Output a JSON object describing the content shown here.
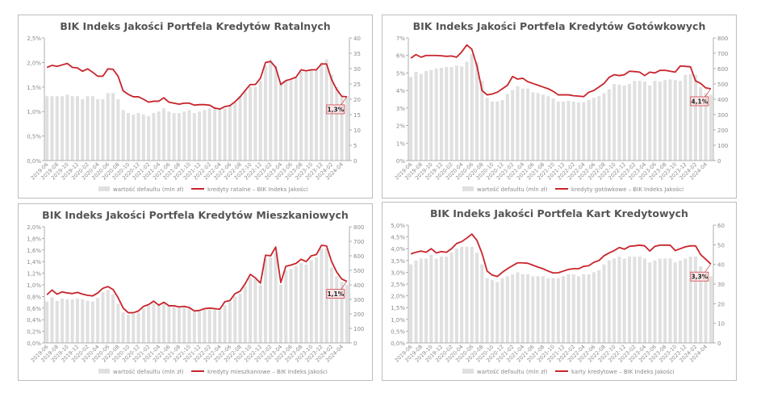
{
  "colors": {
    "bars": "#e0e0e0",
    "line": "#c8252c",
    "axis_text": "#8a8a8a",
    "title": "#555555"
  },
  "chart_data": [
    {
      "type": "bar+line",
      "title": "BIK Indeks Jakości Portfela Kredytów Ratalnych",
      "categories": [
        "2019-06",
        "2019-07",
        "2019-08",
        "2019-09",
        "2019-10",
        "2019-11",
        "2019-12",
        "2020-01",
        "2020-02",
        "2020-03",
        "2020-04",
        "2020-05",
        "2020-06",
        "2020-07",
        "2020-08",
        "2020-09",
        "2020-10",
        "2020-11",
        "2020-12",
        "2021-01",
        "2021-02",
        "2021-03",
        "2021-04",
        "2021-05",
        "2021-06",
        "2021-07",
        "2021-08",
        "2021-09",
        "2021-10",
        "2021-11",
        "2021-12",
        "2022-01",
        "2022-02",
        "2022-03",
        "2022-04",
        "2022-05",
        "2022-06",
        "2022-07",
        "2022-08",
        "2022-09",
        "2022-10",
        "2022-11",
        "2022-12",
        "2023-01",
        "2023-02",
        "2023-03",
        "2023-04",
        "2023-05",
        "2023-06",
        "2023-07",
        "2023-08",
        "2023-09",
        "2023-10",
        "2023-11",
        "2023-12",
        "2024-01",
        "2024-02",
        "2024-03",
        "2024-04",
        "2024-05"
      ],
      "xtick_labels": [
        "2019-06",
        "2019-08",
        "2019-10",
        "2019-12",
        "2020-02",
        "2020-04",
        "2020-06",
        "2020-08",
        "2020-10",
        "2020-12",
        "2021-02",
        "2021-04",
        "2021-06",
        "2021-08",
        "2021-10",
        "2021-12",
        "2022-02",
        "2022-04",
        "2022-06",
        "2022-08",
        "2022-10",
        "2022-12",
        "2023-02",
        "2023-04",
        "2023-06",
        "2023-08",
        "2023-10",
        "2023-12",
        "2024-02",
        "2024-04"
      ],
      "yleft": {
        "lim": [
          0,
          2.5
        ],
        "ticks": [
          "0,0%",
          "0,5%",
          "1,0%",
          "1,5%",
          "2,0%",
          "2,5%"
        ]
      },
      "yright": {
        "lim": [
          0,
          40
        ],
        "ticks": [
          "0",
          "5",
          "10",
          "15",
          "20",
          "25",
          "30",
          "35",
          "40"
        ]
      },
      "bars": {
        "name": "wartość defaultu (mln zł)",
        "axis": "right",
        "values": [
          21,
          21,
          21,
          21,
          21.5,
          21,
          21,
          20,
          21,
          21,
          20,
          20,
          22,
          22,
          20,
          16.5,
          15.5,
          15,
          15.5,
          15,
          14.5,
          15.5,
          16,
          17,
          16,
          15.5,
          15.5,
          16,
          16.5,
          15.5,
          16,
          16.5,
          17,
          17,
          17,
          17,
          18,
          19,
          21,
          23,
          24,
          24,
          26,
          31,
          33,
          31,
          25,
          26,
          26.5,
          27,
          29,
          29,
          29.5,
          29.5,
          32,
          33,
          28,
          24,
          21,
          21
        ]
      },
      "line": {
        "name": "kredyty ratalne – BIK Indeks Jakości",
        "axis": "left",
        "values": [
          1.9,
          1.94,
          1.92,
          1.95,
          1.98,
          1.9,
          1.89,
          1.82,
          1.87,
          1.8,
          1.72,
          1.72,
          1.87,
          1.86,
          1.72,
          1.42,
          1.35,
          1.3,
          1.3,
          1.25,
          1.19,
          1.21,
          1.21,
          1.28,
          1.19,
          1.17,
          1.15,
          1.17,
          1.17,
          1.13,
          1.14,
          1.14,
          1.13,
          1.07,
          1.05,
          1.1,
          1.12,
          1.2,
          1.3,
          1.43,
          1.55,
          1.55,
          1.68,
          2.0,
          2.02,
          1.9,
          1.55,
          1.63,
          1.66,
          1.7,
          1.85,
          1.83,
          1.85,
          1.85,
          1.97,
          1.97,
          1.65,
          1.45,
          1.31,
          1.3
        ]
      },
      "annotation": "1,3%"
    },
    {
      "type": "bar+line",
      "title": "BIK Indeks Jakości Portfela Kredytów Gotówkowych",
      "categories": [
        "2019-06",
        "2019-07",
        "2019-08",
        "2019-09",
        "2019-10",
        "2019-11",
        "2019-12",
        "2020-01",
        "2020-02",
        "2020-03",
        "2020-04",
        "2020-05",
        "2020-06",
        "2020-07",
        "2020-08",
        "2020-09",
        "2020-10",
        "2020-11",
        "2020-12",
        "2021-01",
        "2021-02",
        "2021-03",
        "2021-04",
        "2021-05",
        "2021-06",
        "2021-07",
        "2021-08",
        "2021-09",
        "2021-10",
        "2021-11",
        "2021-12",
        "2022-01",
        "2022-02",
        "2022-03",
        "2022-04",
        "2022-05",
        "2022-06",
        "2022-07",
        "2022-08",
        "2022-09",
        "2022-10",
        "2022-11",
        "2022-12",
        "2023-01",
        "2023-02",
        "2023-03",
        "2023-04",
        "2023-05",
        "2023-06",
        "2023-07",
        "2023-08",
        "2023-09",
        "2023-10",
        "2023-11",
        "2023-12",
        "2024-01",
        "2024-02",
        "2024-03",
        "2024-04",
        "2024-05"
      ],
      "xtick_labels": [
        "2019-06",
        "2019-08",
        "2019-10",
        "2019-12",
        "2020-02",
        "2020-04",
        "2020-06",
        "2020-08",
        "2020-10",
        "2020-12",
        "2021-02",
        "2021-04",
        "2021-06",
        "2021-08",
        "2021-10",
        "2021-12",
        "2022-02",
        "2022-04",
        "2022-06",
        "2022-08",
        "2022-10",
        "2022-12",
        "2023-02",
        "2023-04",
        "2023-06",
        "2023-08",
        "2023-10",
        "2023-12",
        "2024-02",
        "2024-04"
      ],
      "yleft": {
        "lim": [
          0,
          7
        ],
        "ticks": [
          "0%",
          "1%",
          "2%",
          "3%",
          "4%",
          "5%",
          "6%",
          "7%"
        ]
      },
      "yright": {
        "lim": [
          0,
          800
        ],
        "ticks": [
          "0",
          "100",
          "200",
          "300",
          "400",
          "500",
          "600",
          "700",
          "800"
        ]
      },
      "bars": {
        "name": "wartość defaultu (mln zł)",
        "axis": "right",
        "values": [
          545,
          580,
          565,
          585,
          590,
          600,
          605,
          610,
          610,
          620,
          615,
          645,
          695,
          640,
          520,
          410,
          385,
          385,
          395,
          435,
          460,
          485,
          470,
          470,
          445,
          440,
          430,
          420,
          405,
          385,
          385,
          390,
          385,
          380,
          380,
          395,
          410,
          420,
          440,
          465,
          500,
          495,
          490,
          500,
          520,
          520,
          515,
          490,
          520,
          515,
          525,
          530,
          525,
          520,
          560,
          565,
          560,
          480,
          440,
          430
        ]
      },
      "line": {
        "name": "kredyty gotówkowe – BIK Indeks Jakości",
        "axis": "left",
        "values": [
          5.85,
          6.05,
          5.9,
          6.0,
          6.0,
          6.0,
          5.98,
          5.95,
          5.97,
          5.9,
          6.2,
          6.6,
          6.35,
          5.4,
          4.0,
          3.75,
          3.8,
          3.9,
          4.1,
          4.3,
          4.8,
          4.65,
          4.7,
          4.5,
          4.4,
          4.3,
          4.2,
          4.1,
          3.95,
          3.75,
          3.75,
          3.75,
          3.7,
          3.68,
          3.65,
          3.9,
          4.0,
          4.2,
          4.4,
          4.75,
          4.9,
          4.85,
          4.9,
          5.1,
          5.08,
          5.05,
          4.85,
          5.05,
          5.0,
          5.15,
          5.15,
          5.1,
          5.05,
          5.4,
          5.38,
          5.35,
          4.55,
          4.4,
          4.15,
          4.1
        ]
      },
      "annotation": "4,1%"
    },
    {
      "type": "bar+line",
      "title": "BIK Indeks Jakości Portfela Kredytów Mieszkaniowych",
      "categories": [
        "2019-06",
        "2019-07",
        "2019-08",
        "2019-09",
        "2019-10",
        "2019-11",
        "2019-12",
        "2020-01",
        "2020-02",
        "2020-03",
        "2020-04",
        "2020-05",
        "2020-06",
        "2020-07",
        "2020-08",
        "2020-09",
        "2020-10",
        "2020-11",
        "2020-12",
        "2021-01",
        "2021-02",
        "2021-03",
        "2021-04",
        "2021-05",
        "2021-06",
        "2021-07",
        "2021-08",
        "2021-09",
        "2021-10",
        "2021-11",
        "2021-12",
        "2022-01",
        "2022-02",
        "2022-03",
        "2022-04",
        "2022-05",
        "2022-06",
        "2022-07",
        "2022-08",
        "2022-09",
        "2022-10",
        "2022-11",
        "2022-12",
        "2023-01",
        "2023-02",
        "2023-03",
        "2023-04",
        "2023-05",
        "2023-06",
        "2023-07",
        "2023-08",
        "2023-09",
        "2023-10",
        "2023-11",
        "2023-12",
        "2024-01",
        "2024-02",
        "2024-03",
        "2024-04",
        "2024-05"
      ],
      "xtick_labels": [
        "2019-06",
        "2019-08",
        "2019-10",
        "2019-12",
        "2020-02",
        "2020-04",
        "2020-06",
        "2020-08",
        "2020-10",
        "2020-12",
        "2021-02",
        "2021-04",
        "2021-06",
        "2021-08",
        "2021-10",
        "2021-12",
        "2022-02",
        "2022-04",
        "2022-06",
        "2022-08",
        "2022-10",
        "2022-12",
        "2023-02",
        "2023-04",
        "2023-06",
        "2023-08",
        "2023-10",
        "2023-12",
        "2024-02",
        "2024-04"
      ],
      "yleft": {
        "lim": [
          0,
          2.0
        ],
        "ticks": [
          "0,0%",
          "0,2%",
          "0,4%",
          "0,6%",
          "0,8%",
          "1,0%",
          "1,2%",
          "1,4%",
          "1,6%",
          "1,8%",
          "2,0%"
        ]
      },
      "yright": {
        "lim": [
          0,
          800
        ],
        "ticks": [
          "0",
          "100",
          "200",
          "300",
          "400",
          "500",
          "600",
          "700",
          "800"
        ]
      },
      "bars": {
        "name": "wartość defaultu (mln zł)",
        "axis": "right",
        "values": [
          285,
          315,
          290,
          305,
          300,
          300,
          305,
          300,
          290,
          285,
          310,
          350,
          365,
          335,
          270,
          210,
          195,
          200,
          210,
          240,
          255,
          275,
          260,
          275,
          255,
          250,
          250,
          250,
          245,
          215,
          220,
          230,
          230,
          230,
          225,
          260,
          280,
          320,
          340,
          390,
          450,
          440,
          400,
          580,
          590,
          620,
          400,
          500,
          510,
          530,
          550,
          540,
          570,
          590,
          650,
          650,
          520,
          460,
          420,
          400
        ]
      },
      "line": {
        "name": "kredyty mieszkaniowe – BIK Indeks Jakości",
        "axis": "left",
        "values": [
          0.83,
          0.91,
          0.84,
          0.88,
          0.86,
          0.85,
          0.87,
          0.84,
          0.82,
          0.81,
          0.86,
          0.94,
          0.97,
          0.92,
          0.78,
          0.6,
          0.52,
          0.52,
          0.55,
          0.63,
          0.66,
          0.72,
          0.65,
          0.7,
          0.64,
          0.64,
          0.62,
          0.63,
          0.61,
          0.55,
          0.56,
          0.59,
          0.6,
          0.59,
          0.58,
          0.71,
          0.73,
          0.85,
          0.89,
          1.02,
          1.18,
          1.12,
          1.03,
          1.51,
          1.5,
          1.65,
          1.04,
          1.32,
          1.34,
          1.37,
          1.44,
          1.4,
          1.5,
          1.52,
          1.68,
          1.67,
          1.4,
          1.22,
          1.1,
          1.06
        ]
      },
      "annotation": "1,1%"
    },
    {
      "type": "bar+line",
      "title": "BIK Indeks Jakości Portfela Kart Kredytowych",
      "categories": [
        "2019-06",
        "2019-07",
        "2019-08",
        "2019-09",
        "2019-10",
        "2019-11",
        "2019-12",
        "2020-01",
        "2020-02",
        "2020-03",
        "2020-04",
        "2020-05",
        "2020-06",
        "2020-07",
        "2020-08",
        "2020-09",
        "2020-10",
        "2020-11",
        "2020-12",
        "2021-01",
        "2021-02",
        "2021-03",
        "2021-04",
        "2021-05",
        "2021-06",
        "2021-07",
        "2021-08",
        "2021-09",
        "2021-10",
        "2021-11",
        "2021-12",
        "2022-01",
        "2022-02",
        "2022-03",
        "2022-04",
        "2022-05",
        "2022-06",
        "2022-07",
        "2022-08",
        "2022-09",
        "2022-10",
        "2022-11",
        "2022-12",
        "2023-01",
        "2023-02",
        "2023-03",
        "2023-04",
        "2023-05",
        "2023-06",
        "2023-07",
        "2023-08",
        "2023-09",
        "2023-10",
        "2023-11",
        "2023-12",
        "2024-01",
        "2024-02",
        "2024-03",
        "2024-04",
        "2024-05"
      ],
      "xtick_labels": [
        "2019-06",
        "2019-08",
        "2019-10",
        "2019-12",
        "2020-02",
        "2020-04",
        "2020-06",
        "2020-08",
        "2020-10",
        "2020-12",
        "2021-02",
        "2021-04",
        "2021-06",
        "2021-08",
        "2021-10",
        "2021-12",
        "2022-02",
        "2022-04",
        "2022-06",
        "2022-08",
        "2022-10",
        "2022-12",
        "2023-02",
        "2023-04",
        "2023-06",
        "2023-08",
        "2023-10",
        "2023-12",
        "2024-02",
        "2024-04"
      ],
      "yleft": {
        "lim": [
          0,
          5.0
        ],
        "ticks": [
          "0,0%",
          "0,5%",
          "1,0%",
          "1,5%",
          "2,0%",
          "2,5%",
          "3,0%",
          "3,5%",
          "4,0%",
          "4,5%",
          "5,0%"
        ]
      },
      "yright": {
        "lim": [
          0,
          60
        ],
        "ticks": [
          "0",
          "10",
          "20",
          "30",
          "40",
          "50",
          "60"
        ]
      },
      "bars": {
        "name": "wartość defaultu (mln zł)",
        "axis": "right",
        "values": [
          40,
          42,
          43,
          43,
          45,
          43,
          44,
          44,
          46,
          48,
          49,
          49,
          49,
          46,
          40,
          33,
          32,
          31,
          33,
          34,
          35,
          36,
          35,
          35,
          34,
          34,
          34,
          33,
          33,
          33,
          34,
          35,
          35,
          34,
          35,
          35,
          36,
          37,
          40,
          42,
          43,
          44,
          43,
          44,
          44,
          44,
          43,
          41,
          42,
          43,
          43,
          43,
          41,
          42,
          43,
          44,
          44,
          39,
          35,
          34
        ]
      },
      "line": {
        "name": "karty kredytowe – BIK Indeks Jakości",
        "axis": "left",
        "values": [
          3.78,
          3.85,
          3.9,
          3.85,
          4.0,
          3.82,
          3.88,
          3.85,
          4.0,
          4.22,
          4.3,
          4.45,
          4.62,
          4.35,
          3.8,
          3.05,
          2.88,
          2.82,
          3.0,
          3.15,
          3.28,
          3.4,
          3.4,
          3.38,
          3.3,
          3.22,
          3.15,
          3.05,
          2.97,
          2.98,
          3.05,
          3.12,
          3.15,
          3.15,
          3.25,
          3.28,
          3.42,
          3.5,
          3.7,
          3.82,
          3.92,
          4.05,
          3.98,
          4.1,
          4.12,
          4.15,
          4.12,
          3.9,
          4.1,
          4.15,
          4.15,
          4.15,
          3.92,
          4.0,
          4.08,
          4.12,
          4.12,
          3.75,
          3.55,
          3.35
        ]
      },
      "annotation": "3,3%"
    }
  ]
}
